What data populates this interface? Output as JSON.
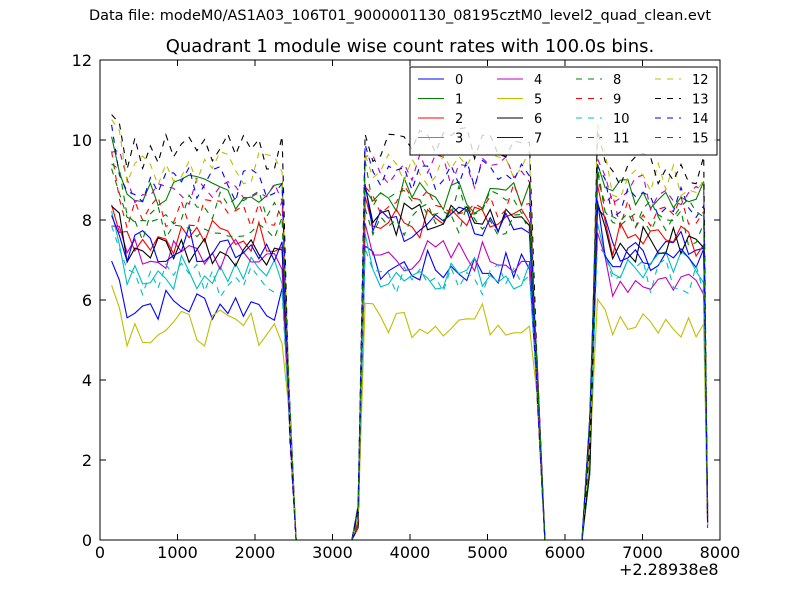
{
  "figure": {
    "suptitle": "Data file: modeM0/AS1A03_106T01_9000001130_08195cztM0_level2_quad_clean.evt",
    "x_offset_label": "+2.28938e8"
  },
  "chart_data": {
    "type": "line",
    "title": "Quadrant 1 module wise count rates with 100.0s bins.",
    "xlabel": "",
    "ylabel": "",
    "xlim": [
      0,
      8000
    ],
    "ylim": [
      0,
      12
    ],
    "xticks": [
      0,
      1000,
      2000,
      3000,
      4000,
      5000,
      6000,
      7000,
      8000
    ],
    "yticks": [
      0,
      2,
      4,
      6,
      8,
      10,
      12
    ],
    "x_offset": 228938000,
    "legend_position": "upper-right",
    "legend_columns": 4,
    "segments": [
      {
        "start": 150,
        "end": 2350,
        "n": 23
      },
      {
        "start": 3420,
        "end": 5540,
        "n": 22
      },
      {
        "start": 6420,
        "end": 7790,
        "n": 15
      }
    ],
    "transitions": {
      "rise1_low": 0.6,
      "rise2_low": 0.8,
      "end_tail": 0.6
    },
    "series": [
      {
        "name": "0",
        "color": "#0000ff",
        "dash": "solid",
        "levels": [
          5.9,
          6.8,
          7.3
        ]
      },
      {
        "name": "1",
        "color": "#008000",
        "dash": "solid",
        "levels": [
          8.7,
          8.6,
          8.7
        ]
      },
      {
        "name": "2",
        "color": "#ff0000",
        "dash": "solid",
        "levels": [
          7.6,
          7.9,
          7.5
        ]
      },
      {
        "name": "3",
        "color": "#00bfbf",
        "dash": "solid",
        "levels": [
          6.7,
          6.7,
          6.8
        ]
      },
      {
        "name": "4",
        "color": "#bf00bf",
        "dash": "solid",
        "levels": [
          7.1,
          7.1,
          6.5
        ]
      },
      {
        "name": "5",
        "color": "#bfbf00",
        "dash": "solid",
        "levels": [
          5.3,
          5.5,
          5.3
        ]
      },
      {
        "name": "6",
        "color": "#000000",
        "dash": "solid",
        "levels": [
          7.3,
          8.0,
          7.4
        ]
      },
      {
        "name": "7",
        "color": "#0000ff",
        "dash": "solid",
        "levels": [
          7.4,
          7.9,
          7.0
        ]
      },
      {
        "name": "8",
        "color": "#008000",
        "dash": "dashed",
        "levels": [
          7.9,
          8.0,
          7.8
        ]
      },
      {
        "name": "9",
        "color": "#ff0000",
        "dash": "dashed",
        "levels": [
          8.2,
          8.5,
          8.2
        ]
      },
      {
        "name": "10",
        "color": "#00bfbf",
        "dash": "dashed",
        "levels": [
          6.5,
          6.5,
          6.6
        ]
      },
      {
        "name": "11",
        "color": "#bf00bf",
        "dash": "dashed",
        "levels": [
          8.8,
          9.2,
          8.7
        ]
      },
      {
        "name": "12",
        "color": "#bfbf00",
        "dash": "dashed",
        "levels": [
          9.3,
          9.3,
          9.0
        ]
      },
      {
        "name": "13",
        "color": "#000000",
        "dash": "dashed",
        "levels": [
          9.7,
          9.9,
          9.3
        ]
      },
      {
        "name": "14",
        "color": "#0000ff",
        "dash": "dashed",
        "levels": [
          8.9,
          9.1,
          8.5
        ]
      },
      {
        "name": "15",
        "color": "#008000",
        "dash": "dashed",
        "levels": [
          8.3,
          8.5,
          8.1
        ]
      }
    ]
  }
}
